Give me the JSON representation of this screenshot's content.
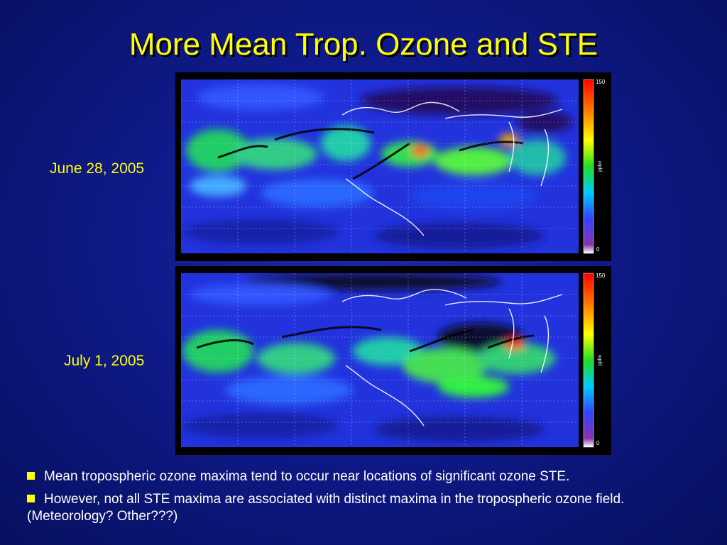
{
  "slide": {
    "title": "More Mean Trop. Ozone and STE"
  },
  "panels": [
    {
      "date": "June 28, 2005",
      "colorbar": {
        "max_label": "150",
        "min_label": "0",
        "unit": "ppbv"
      }
    },
    {
      "date": "July 1, 2005",
      "colorbar": {
        "max_label": "150",
        "min_label": "0",
        "unit": "ppbv"
      }
    }
  ],
  "bullets": [
    "Mean tropospheric ozone maxima tend to occur near locations of significant ozone STE.",
    "However, not all STE maxima are associated with distinct maxima in the tropospheric ozone field.  (Meteorology? Other???)"
  ],
  "colors": {
    "title": "#ffff00",
    "bullet_marker": "#ffff00",
    "background": "#0f1a8a"
  }
}
